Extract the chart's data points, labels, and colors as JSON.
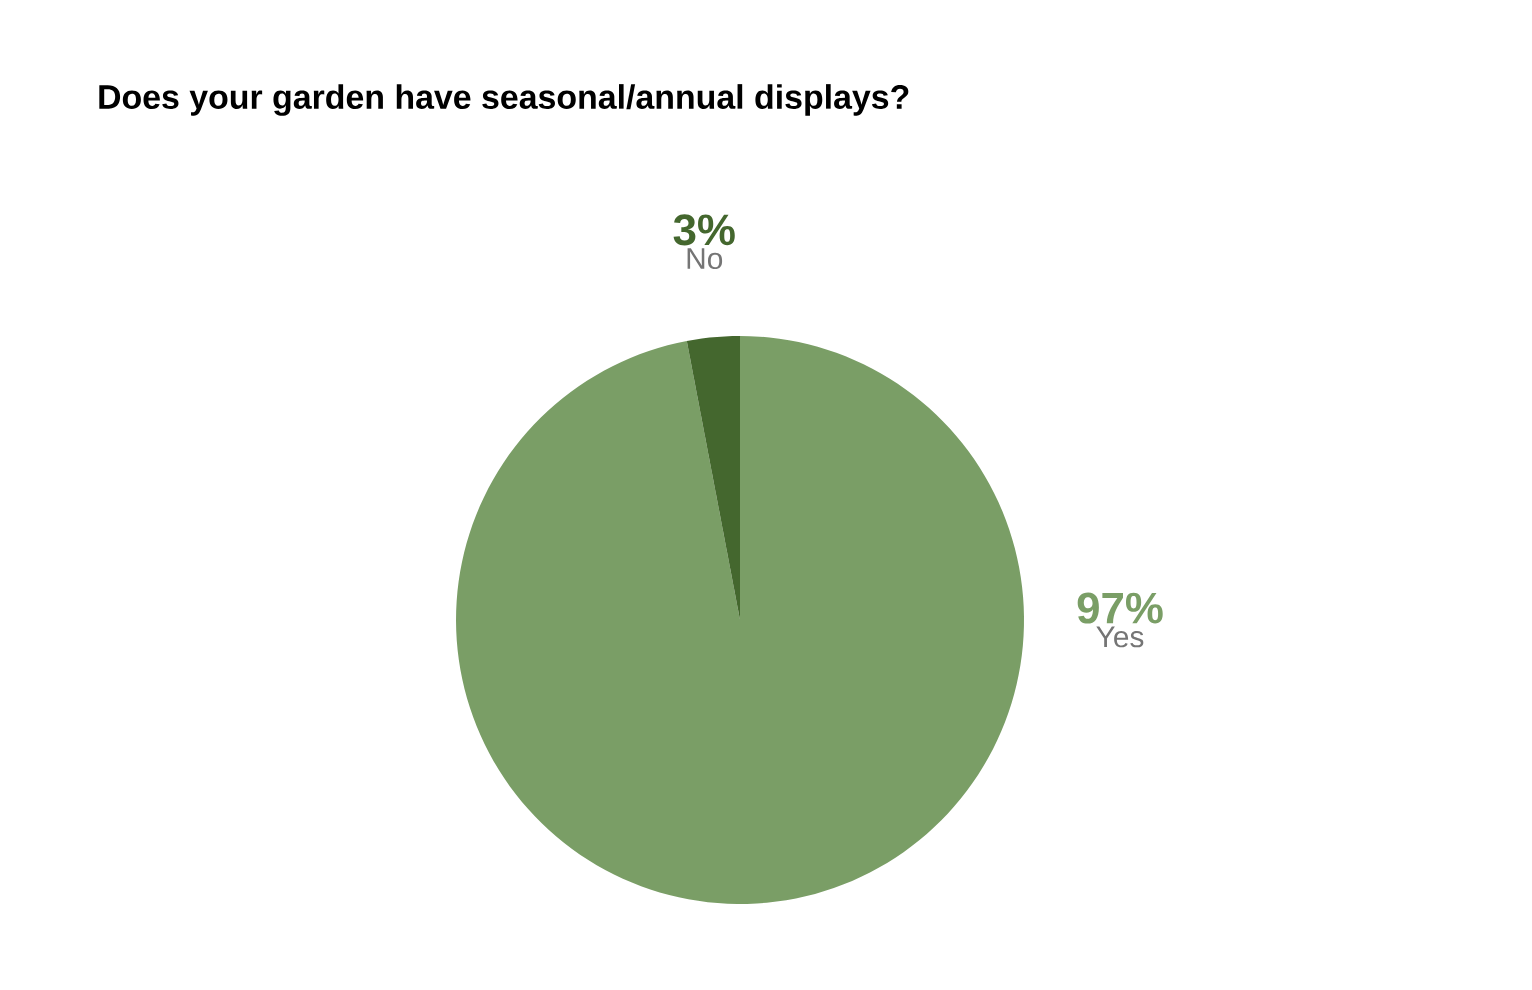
{
  "chart_data": {
    "type": "pie",
    "title": "Does your garden have seasonal/annual displays?",
    "categories": [
      "Yes",
      "No"
    ],
    "values": [
      97,
      3
    ],
    "value_labels": [
      "97%",
      "3%"
    ],
    "colors": [
      "#7a9e66",
      "#44672e"
    ]
  }
}
